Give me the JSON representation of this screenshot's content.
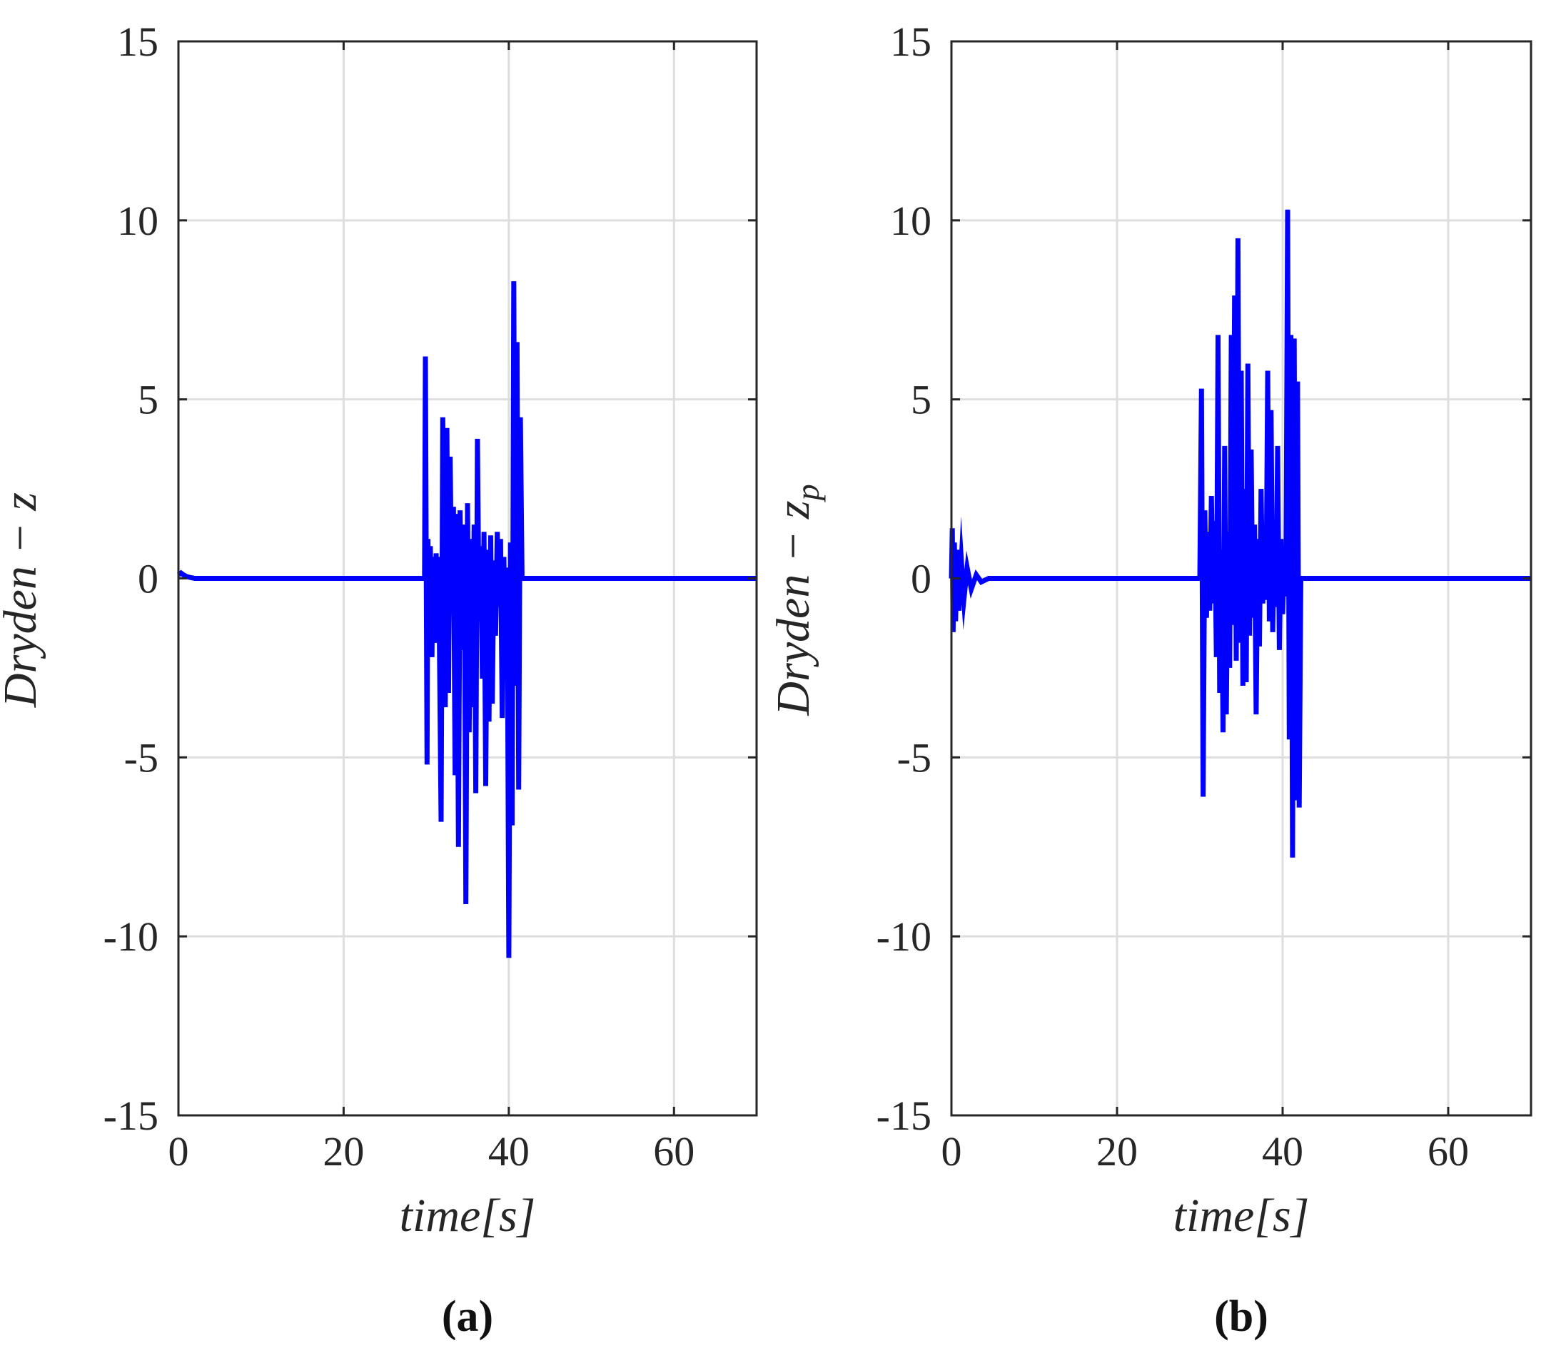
{
  "chart_data": [
    {
      "type": "line",
      "caption": "(a)",
      "xlabel": "time[s]",
      "ylabel": "Dryden − z",
      "ylabel_sub": "",
      "xlim": [
        0,
        70
      ],
      "ylim": [
        -15,
        15
      ],
      "xticks": [
        0,
        20,
        40,
        60
      ],
      "yticks": [
        15,
        10,
        5,
        0,
        -5,
        -10,
        -15
      ],
      "grid": true,
      "color": "#0000ff",
      "series": [
        {
          "x": [
            0,
            0.3,
            0.6,
            1.0,
            1.5,
            2.0,
            2.5,
            3.0,
            29.8,
            29.9,
            30.1,
            30.2,
            30.4,
            30.5,
            30.7,
            30.8,
            31.0,
            31.2,
            31.4,
            31.5,
            31.8,
            32.0,
            32.3,
            32.5,
            32.7,
            32.9,
            33.1,
            33.3,
            33.5,
            33.7,
            33.9,
            34.1,
            34.3,
            34.6,
            34.8,
            35.0,
            35.2,
            35.4,
            35.6,
            35.8,
            36.0,
            36.2,
            36.4,
            36.6,
            36.8,
            37.0,
            37.2,
            37.4,
            37.6,
            37.8,
            38.0,
            38.2,
            38.4,
            38.6,
            38.8,
            39.0,
            39.2,
            39.4,
            39.6,
            39.8,
            40.0,
            40.2,
            40.4,
            40.6,
            40.8,
            41.0,
            41.2,
            41.4,
            41.6,
            41.8,
            42.0,
            42.2,
            42.4,
            42.6,
            42.8,
            43.0,
            43.2,
            43.4,
            43.6,
            43.8,
            44.0,
            44.2,
            44.4,
            44.6,
            44.8,
            45.0,
            45.2,
            45.5,
            50,
            70
          ],
          "y": [
            0.1,
            0.15,
            0.1,
            0.05,
            0.02,
            0,
            0,
            0,
            0,
            6.2,
            -5.2,
            1.1,
            -1.5,
            0.9,
            -2.2,
            0.6,
            -1.8,
            0.7,
            -0.5,
            0.6,
            -6.8,
            4.5,
            -3.6,
            4.2,
            -3.2,
            3.4,
            -1.0,
            2.0,
            -5.5,
            1.8,
            -7.5,
            1.9,
            -2.0,
            1.5,
            -9.1,
            2.1,
            -4.3,
            1.1,
            -3.6,
            1.5,
            -6.0,
            3.9,
            -1.2,
            0.9,
            -2.8,
            1.3,
            -5.8,
            0.8,
            -4.0,
            1.2,
            -3.5,
            0.5,
            -1.6,
            1.3,
            -0.8,
            1.1,
            -3.9,
            0.6,
            -2.0,
            0.3,
            -10.6,
            1.0,
            -6.9,
            8.3,
            -3.0,
            6.6,
            -5.9,
            4.5,
            0,
            0,
            0,
            0,
            0,
            0,
            0,
            0,
            0,
            0,
            0,
            0,
            0,
            0,
            0,
            0,
            0,
            0,
            0,
            0,
            0,
            0
          ]
        }
      ]
    },
    {
      "type": "line",
      "caption": "(b)",
      "xlabel": "time[s]",
      "ylabel": "Dryden − z",
      "ylabel_sub": "p",
      "xlim": [
        0,
        70
      ],
      "ylim": [
        -15,
        15
      ],
      "xticks": [
        0,
        20,
        40,
        60
      ],
      "yticks": [
        15,
        10,
        5,
        0,
        -5,
        -10,
        -15
      ],
      "grid": true,
      "color": "#0000ff",
      "series": [
        {
          "x": [
            0,
            0.1,
            0.2,
            0.35,
            0.5,
            0.7,
            0.9,
            1.2,
            1.5,
            1.9,
            2.4,
            3.0,
            3.6,
            4.5,
            5.5,
            30.0,
            30.2,
            30.4,
            30.6,
            30.8,
            31.0,
            31.2,
            31.4,
            31.6,
            31.8,
            32.0,
            32.2,
            32.4,
            32.6,
            32.8,
            33.0,
            33.2,
            33.4,
            33.6,
            33.8,
            34.0,
            34.2,
            34.4,
            34.6,
            34.8,
            35.0,
            35.2,
            35.4,
            35.6,
            35.8,
            36.0,
            36.2,
            36.4,
            36.6,
            36.8,
            37.0,
            37.2,
            37.4,
            37.6,
            37.8,
            38.0,
            38.2,
            38.4,
            38.6,
            38.8,
            39.0,
            39.2,
            39.4,
            39.6,
            39.8,
            40.0,
            40.2,
            40.4,
            40.6,
            40.8,
            41.0,
            41.2,
            41.4,
            41.6,
            41.8,
            42.0,
            42.2,
            42.4,
            42.6,
            42.8,
            43.0,
            43.2,
            43.4,
            43.6,
            43.8,
            44.0,
            44.2,
            44.4,
            44.6,
            44.8,
            45.0,
            45.2,
            45.5,
            50,
            70
          ],
          "y": [
            0,
            1.4,
            -1.5,
            1.0,
            -1.2,
            0.8,
            -0.9,
            0.5,
            -0.6,
            0.3,
            -0.3,
            0.1,
            -0.1,
            0,
            0,
            0,
            5.3,
            -6.1,
            1.9,
            -1.1,
            1.3,
            -0.9,
            2.3,
            -0.7,
            1.6,
            -2.2,
            6.8,
            -3.2,
            0.8,
            -4.3,
            3.7,
            -3.8,
            1.3,
            -2.5,
            6.8,
            -1.3,
            7.9,
            -2.3,
            9.5,
            -1.8,
            5.8,
            -3.0,
            2.5,
            -2.9,
            6.0,
            -1.6,
            3.6,
            -1.1,
            1.5,
            -3.8,
            1.1,
            -1.9,
            2.5,
            -0.7,
            1.0,
            -0.6,
            5.8,
            -1.2,
            4.7,
            -1.5,
            1.2,
            -0.8,
            3.7,
            -2.0,
            1.1,
            -1.0,
            0.6,
            -0.5,
            10.3,
            -4.5,
            6.8,
            -7.8,
            6.7,
            -6.2,
            5.5,
            -6.4,
            0,
            0,
            0,
            0,
            0,
            0,
            0,
            0,
            0,
            0,
            0,
            0,
            0,
            0,
            0,
            0,
            0,
            0,
            0
          ]
        }
      ]
    }
  ]
}
